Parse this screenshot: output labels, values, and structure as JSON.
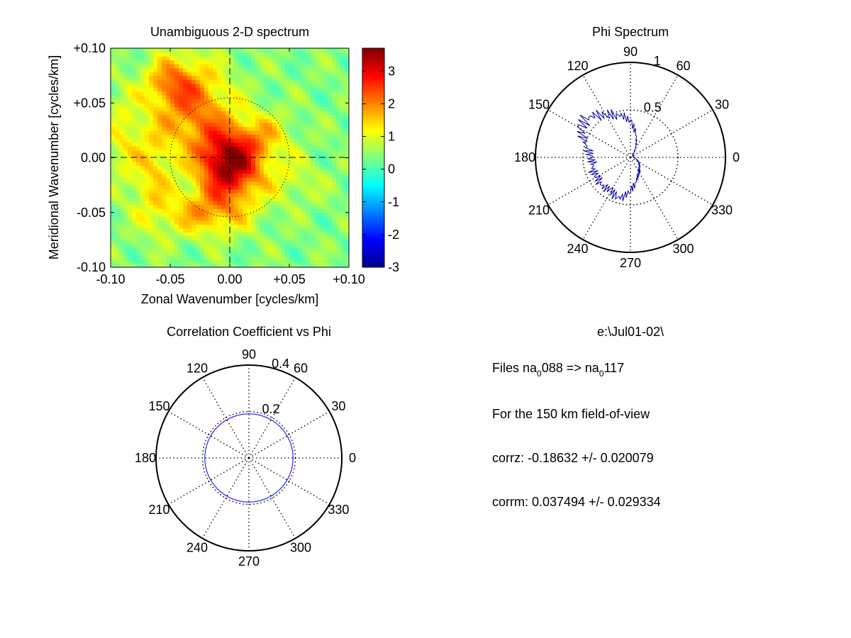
{
  "chart_data": [
    {
      "type": "heatmap",
      "title": "Unambiguous 2-D spectrum",
      "xlabel": "Zonal Wavenumber [cycles/km]",
      "ylabel": "Meridional Wavenumber [cycles/km]",
      "xlim": [
        -0.1,
        0.1
      ],
      "ylim": [
        -0.1,
        0.1
      ],
      "xticks": [
        "-0.10",
        "-0.05",
        "0.00",
        "+0.05",
        "+0.10"
      ],
      "yticks": [
        "+0.10",
        "+0.05",
        "0.00",
        "-0.05",
        "-0.10"
      ],
      "colorbar": {
        "min": -3,
        "max": 3.7,
        "ticks": [
          "3",
          "2",
          "1",
          "0",
          "-1",
          "-2",
          "-3"
        ],
        "colormap": "jet"
      },
      "dotted_circle_radius": 0.05,
      "background_level": 0.4,
      "blobs": [
        {
          "x": 0.0,
          "y": -0.005,
          "sx": 0.018,
          "sy": 0.022,
          "value": 3.2
        },
        {
          "x": -0.03,
          "y": 0.045,
          "sx": 0.022,
          "sy": 0.03,
          "value": 1.6
        },
        {
          "x": -0.05,
          "y": 0.07,
          "sx": 0.015,
          "sy": 0.015,
          "value": 1.1
        },
        {
          "x": -0.02,
          "y": -0.05,
          "sx": 0.025,
          "sy": 0.015,
          "value": 1.3
        },
        {
          "x": -0.065,
          "y": -0.015,
          "sx": 0.012,
          "sy": 0.035,
          "value": 0.9
        },
        {
          "x": -0.09,
          "y": 0.02,
          "sx": 0.01,
          "sy": 0.03,
          "value": 0.7
        },
        {
          "x": 0.03,
          "y": 0.02,
          "sx": 0.015,
          "sy": 0.015,
          "value": 0.9
        },
        {
          "x": 0.05,
          "y": -0.02,
          "sx": 0.02,
          "sy": 0.015,
          "value": 0.5
        }
      ]
    },
    {
      "type": "line",
      "projection": "polar",
      "title": "Phi Spectrum",
      "rmax": 1,
      "rtick_labels": [
        "0.5",
        "1"
      ],
      "angle_labels": [
        "0",
        "30",
        "60",
        "90",
        "120",
        "150",
        "180",
        "210",
        "240",
        "270",
        "300",
        "330"
      ],
      "series": [
        {
          "angles_deg": [
            0,
            10,
            20,
            30,
            40,
            50,
            60,
            70,
            80,
            90,
            100,
            110,
            120,
            130,
            140,
            150,
            160,
            170,
            180,
            190,
            200,
            210,
            220,
            230,
            240,
            250,
            260,
            270,
            280,
            290,
            300,
            310,
            320,
            330,
            340,
            350
          ],
          "r": [
            0.04,
            0.03,
            0.03,
            0.03,
            0.03,
            0.05,
            0.1,
            0.18,
            0.28,
            0.38,
            0.44,
            0.48,
            0.52,
            0.58,
            0.62,
            0.6,
            0.52,
            0.45,
            0.42,
            0.4,
            0.42,
            0.4,
            0.42,
            0.42,
            0.4,
            0.45,
            0.42,
            0.35,
            0.28,
            0.22,
            0.18,
            0.15,
            0.12,
            0.1,
            0.07,
            0.05
          ],
          "color": "#0000a0"
        }
      ]
    },
    {
      "type": "line",
      "projection": "polar",
      "title": "Correlation Coefficient vs Phi",
      "rmax": 0.4,
      "rtick_labels": [
        "0.2",
        "0.4"
      ],
      "angle_labels": [
        "0",
        "30",
        "60",
        "90",
        "120",
        "150",
        "180",
        "210",
        "240",
        "270",
        "300",
        "330"
      ],
      "series": [
        {
          "shape": "circle",
          "r": 0.19,
          "color": "#0000ff"
        }
      ]
    }
  ],
  "info": {
    "path": "e:\\Jul01-02\\",
    "files_prefix": "Files  na",
    "files_sub1": "0",
    "files_num1": "088  =>  na",
    "files_sub2": "0",
    "files_num2": "117",
    "fov": "For the  150 km field-of-view",
    "corrz": "corrz: -0.18632 +/- 0.020079",
    "corrm": "corrm: 0.037494 +/- 0.029334"
  }
}
